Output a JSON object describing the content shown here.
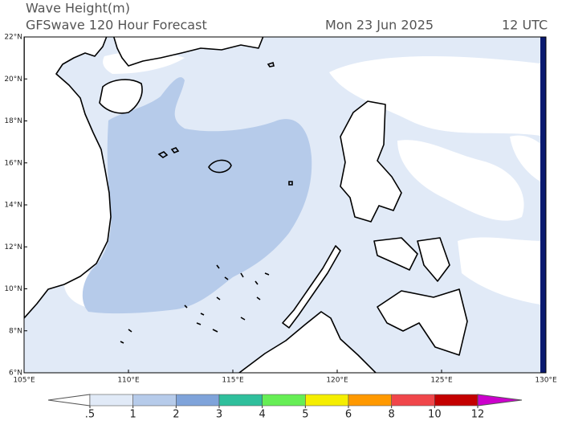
{
  "header": {
    "title": "Wave Height(m)",
    "subtitle": "GFSwave 120 Hour Forecast",
    "date": "Mon 23 Jun 2025",
    "time": "12 UTC"
  },
  "map": {
    "lonlim": [
      105,
      130
    ],
    "latlim": [
      6,
      22
    ],
    "lon_ticks": [
      {
        "value": 105,
        "label": "105°E"
      },
      {
        "value": 110,
        "label": "110°E"
      },
      {
        "value": 115,
        "label": "115°E"
      },
      {
        "value": 120,
        "label": "120°E"
      },
      {
        "value": 125,
        "label": "125°E"
      },
      {
        "value": 130,
        "label": "130°E"
      }
    ],
    "lat_ticks": [
      {
        "value": 6,
        "label": "6°N"
      },
      {
        "value": 8,
        "label": "8°N"
      },
      {
        "value": 10,
        "label": "10°N"
      },
      {
        "value": 12,
        "label": "12°N"
      },
      {
        "value": 14,
        "label": "14°N"
      },
      {
        "value": 16,
        "label": "16°N"
      },
      {
        "value": 18,
        "label": "18°N"
      },
      {
        "value": 20,
        "label": "20°N"
      },
      {
        "value": 22,
        "label": "22°N"
      }
    ]
  },
  "colorbar": {
    "levels": [
      {
        "value": 0.5,
        "label": ".5"
      },
      1,
      2,
      3,
      4,
      5,
      6,
      8,
      10,
      12
    ],
    "colors": [
      "#ffffff",
      "#e1eaf7",
      "#b6cbea",
      "#7fa3da",
      "#2fbf9c",
      "#66ee55",
      "#f5ee00",
      "#ff9900",
      "#f0464a",
      "#c40000",
      "#cc00cc"
    ]
  }
}
